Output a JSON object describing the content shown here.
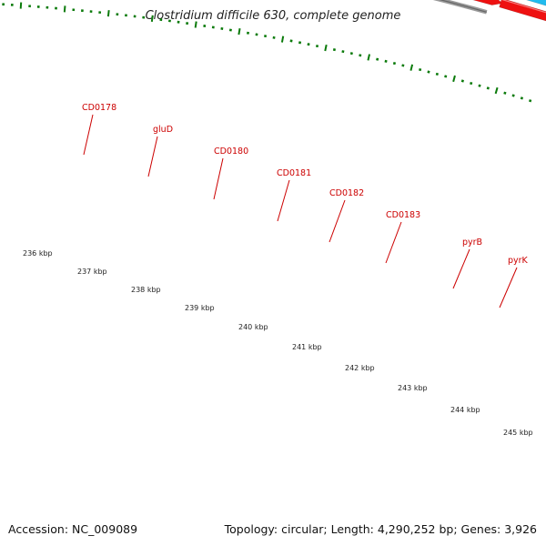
{
  "title": "Clostridium difficile 630, complete genome",
  "footer": {
    "accession": "Accession: NC_009089",
    "summary": "Topology: circular; Length: 4,290,252 bp; Genes: 3,926"
  },
  "colors": {
    "backbone": "#888888",
    "tick": "#0a7a0a",
    "label": "#cc0000",
    "leader": "#cc0000"
  },
  "kbp_labels": [
    "236 kbp",
    "237 kbp",
    "238 kbp",
    "239 kbp",
    "240 kbp",
    "241 kbp",
    "242 kbp",
    "243 kbp",
    "244 kbp",
    "245 kbp"
  ],
  "gene_labels": [
    "CD0178",
    "gluD",
    "CD0180",
    "CD0181",
    "CD0182",
    "CD0183",
    "pyrB",
    "pyrK"
  ],
  "features": [
    {
      "name": "feature-blue-left",
      "color": "#1a1aee"
    },
    {
      "name": "feature-olive-left",
      "color": "#6e8b2a"
    },
    {
      "name": "feature-red-1",
      "color": "#ee1111"
    },
    {
      "name": "feature-steelblue-glud",
      "color": "#4a7fb5"
    },
    {
      "name": "feature-red-glud",
      "color": "#ee1111"
    },
    {
      "name": "feature-red-small-1",
      "color": "#ee1111"
    },
    {
      "name": "feature-green",
      "color": "#33cc33"
    },
    {
      "name": "feature-orange",
      "color": "#f0a020"
    },
    {
      "name": "feature-red-2",
      "color": "#ee1111"
    },
    {
      "name": "feature-red-small-2",
      "color": "#ee1111"
    },
    {
      "name": "feature-olive-2",
      "color": "#6e8b2a"
    },
    {
      "name": "feature-red-3",
      "color": "#ee1111"
    },
    {
      "name": "feature-skyblue-pyrb",
      "color": "#22bbee"
    },
    {
      "name": "feature-red-pyrb",
      "color": "#ee1111"
    },
    {
      "name": "feature-cyan-pyrk",
      "color": "#22eeee"
    },
    {
      "name": "feature-blue-pyrk",
      "color": "#2222dd"
    },
    {
      "name": "feature-skyblue-right",
      "color": "#22bbee"
    },
    {
      "name": "feature-red-pyrk",
      "color": "#ee1111"
    },
    {
      "name": "feature-red-right",
      "color": "#ee1111"
    }
  ]
}
